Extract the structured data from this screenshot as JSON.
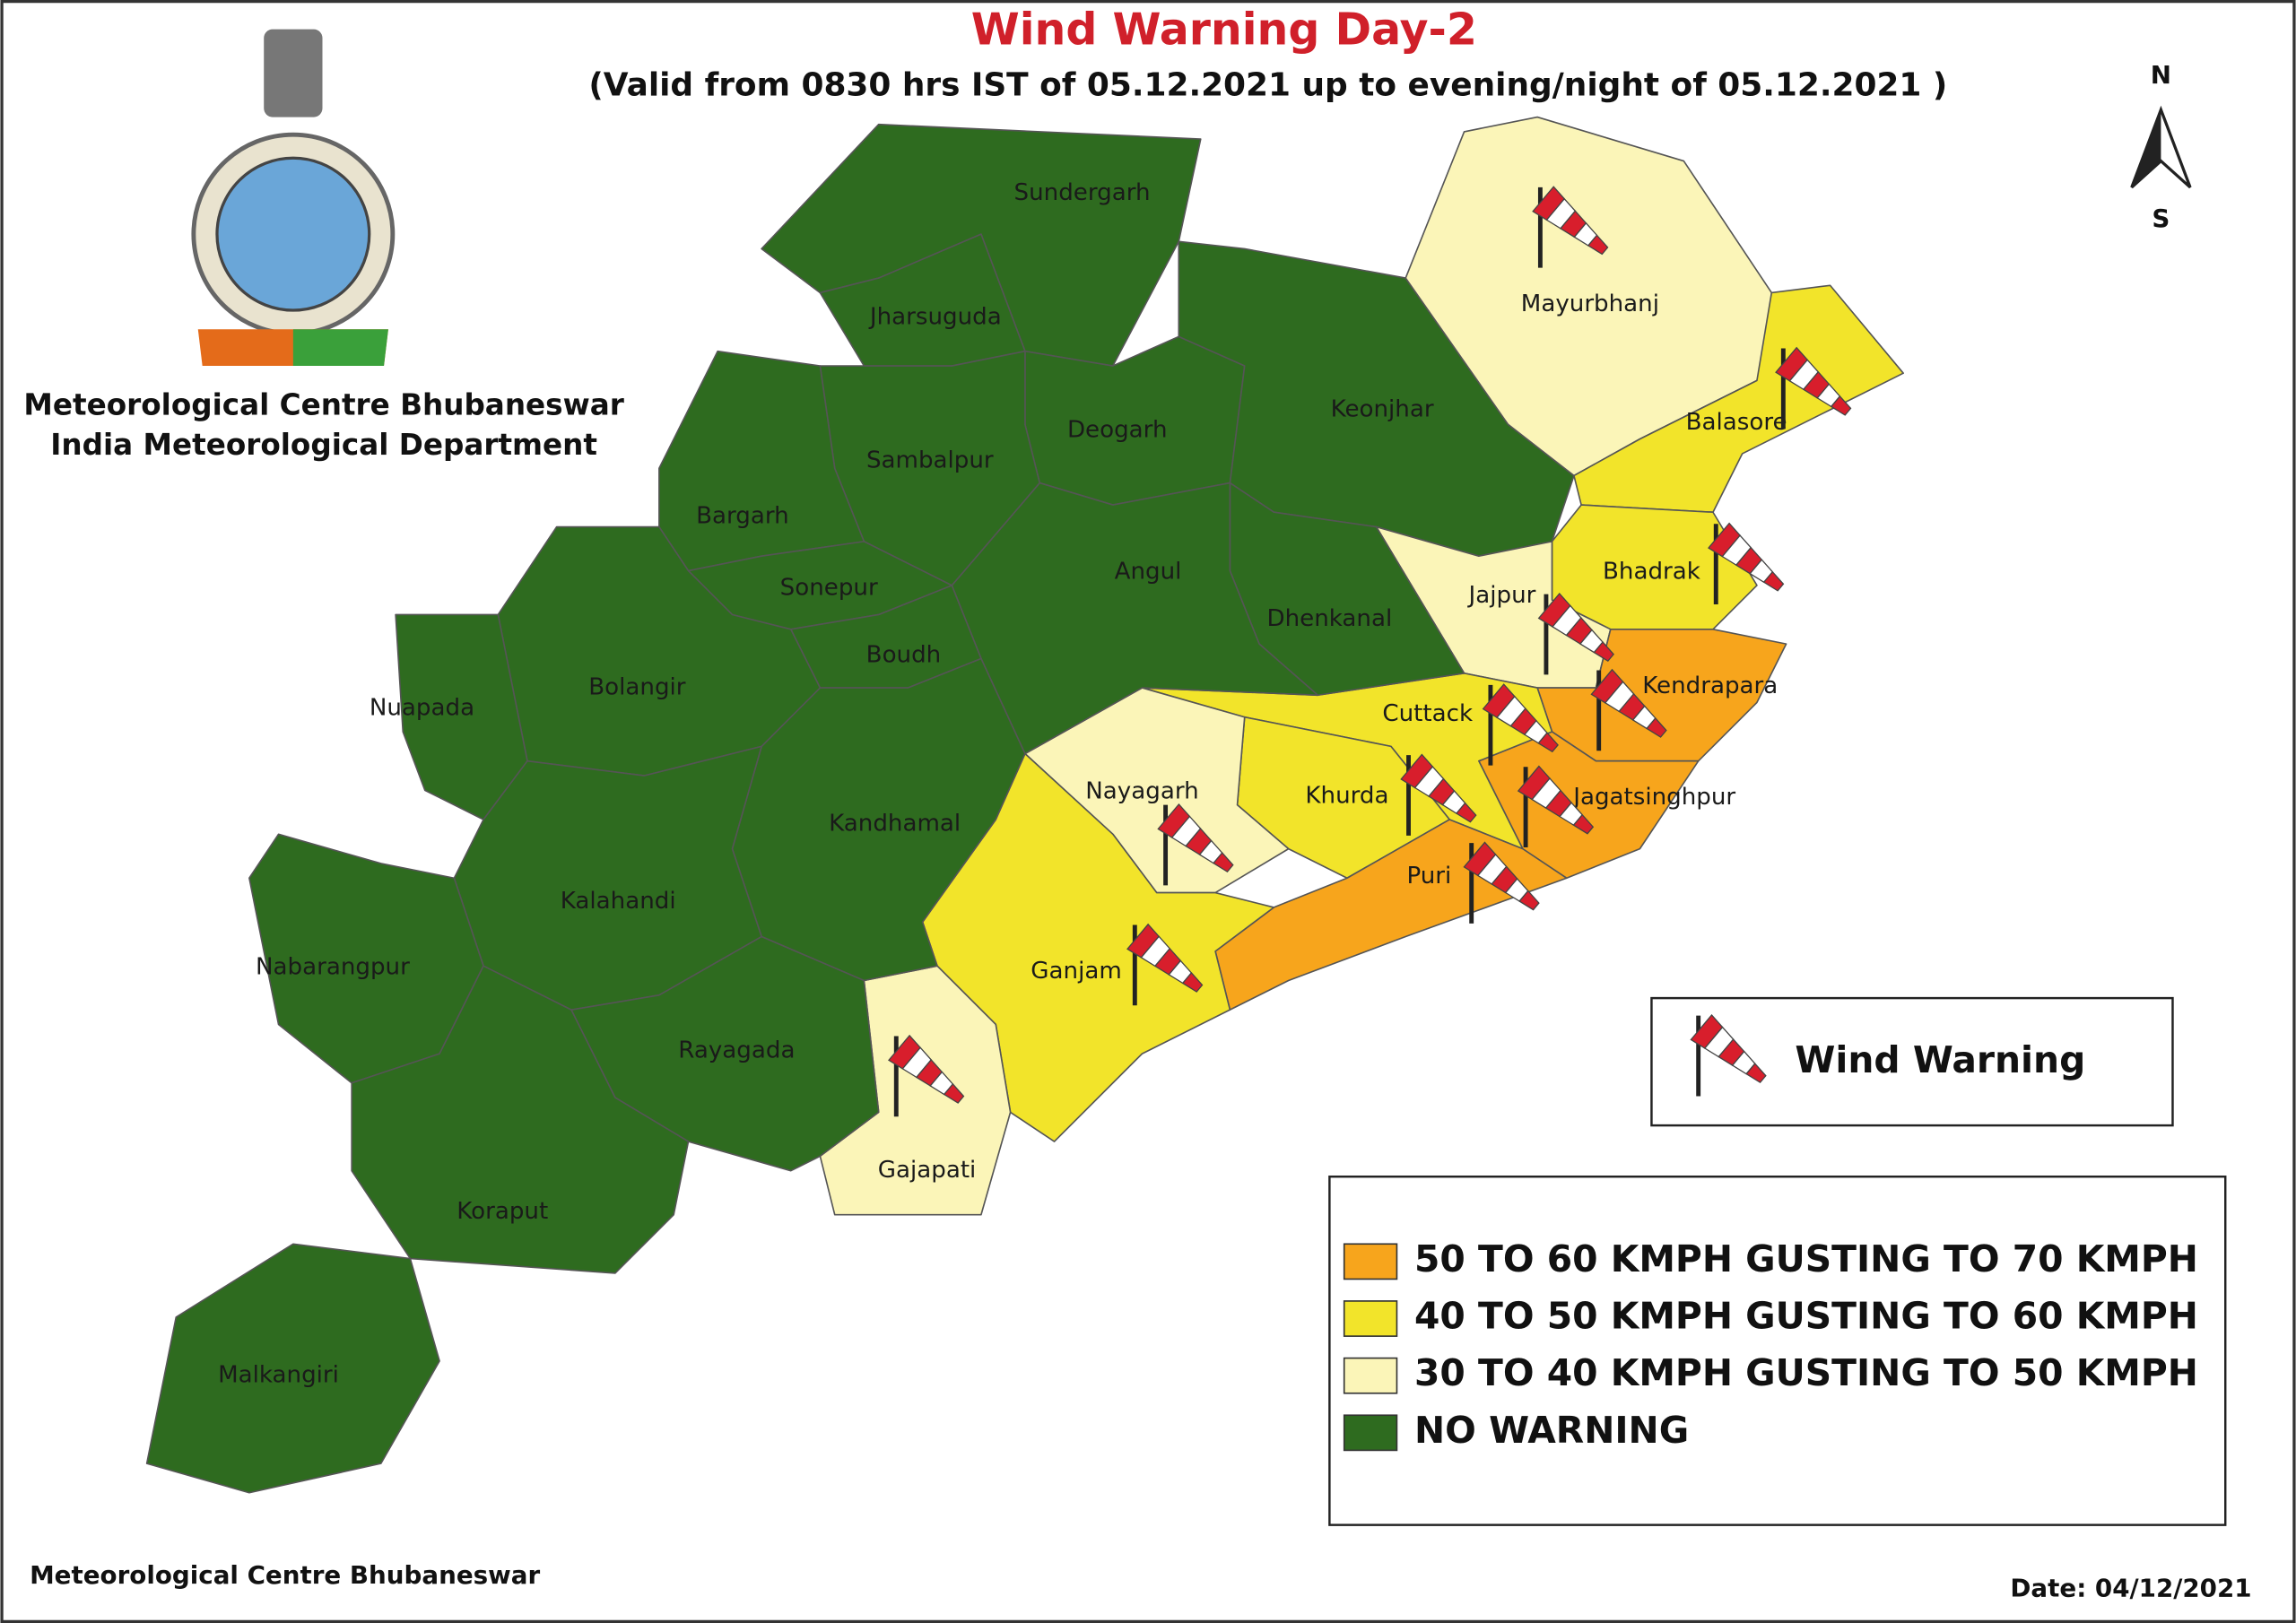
{
  "header": {
    "title": "Wind Warning Day-2",
    "subtitle": "(Valid from 0830 hrs IST of 05.12.2021 up to evening/night of 05.12.2021 )",
    "organization": [
      "Meteorological Centre Bhubaneswar",
      "India Meteorological Department"
    ]
  },
  "compass": {
    "north": "N",
    "south": "S"
  },
  "districts": [
    {
      "name": "Sundergarh",
      "color": "#2e6b1f",
      "windsock": false
    },
    {
      "name": "Jharsuguda",
      "color": "#2e6b1f",
      "windsock": false
    },
    {
      "name": "Deogarh",
      "color": "#2e6b1f",
      "windsock": false
    },
    {
      "name": "Keonjhar",
      "color": "#2e6b1f",
      "windsock": false
    },
    {
      "name": "Mayurbhanj",
      "color": "#fbf5b8",
      "windsock": true
    },
    {
      "name": "Balasore",
      "color": "#f2e42a",
      "windsock": true
    },
    {
      "name": "Bhadrak",
      "color": "#f2e42a",
      "windsock": true
    },
    {
      "name": "Jajpur",
      "color": "#fbf5b8",
      "windsock": true
    },
    {
      "name": "Kendrapara",
      "color": "#f7a51c",
      "windsock": true
    },
    {
      "name": "Jagatsinghpur",
      "color": "#f7a51c",
      "windsock": true
    },
    {
      "name": "Cuttack",
      "color": "#f2e42a",
      "windsock": true
    },
    {
      "name": "Khurda",
      "color": "#f2e42a",
      "windsock": true
    },
    {
      "name": "Puri",
      "color": "#f7a51c",
      "windsock": true
    },
    {
      "name": "Nayagarh",
      "color": "#fbf5b8",
      "windsock": true
    },
    {
      "name": "Ganjam",
      "color": "#f2e42a",
      "windsock": true
    },
    {
      "name": "Gajapati",
      "color": "#fbf5b8",
      "windsock": true
    },
    {
      "name": "Dhenkanal",
      "color": "#2e6b1f",
      "windsock": false
    },
    {
      "name": "Angul",
      "color": "#2e6b1f",
      "windsock": false
    },
    {
      "name": "Sambalpur",
      "color": "#2e6b1f",
      "windsock": false
    },
    {
      "name": "Bargarh",
      "color": "#2e6b1f",
      "windsock": false
    },
    {
      "name": "Sonepur",
      "color": "#2e6b1f",
      "windsock": false
    },
    {
      "name": "Boudh",
      "color": "#2e6b1f",
      "windsock": false
    },
    {
      "name": "Kandhamal",
      "color": "#2e6b1f",
      "windsock": false
    },
    {
      "name": "Bolangir",
      "color": "#2e6b1f",
      "windsock": false
    },
    {
      "name": "Nuapada",
      "color": "#2e6b1f",
      "windsock": false
    },
    {
      "name": "Kalahandi",
      "color": "#2e6b1f",
      "windsock": false
    },
    {
      "name": "Nabarangpur",
      "color": "#2e6b1f",
      "windsock": false
    },
    {
      "name": "Rayagada",
      "color": "#2e6b1f",
      "windsock": false
    },
    {
      "name": "Koraput",
      "color": "#2e6b1f",
      "windsock": false
    },
    {
      "name": "Malkangiri",
      "color": "#2e6b1f",
      "windsock": false
    }
  ],
  "wind_legend": {
    "label": "Wind Warning"
  },
  "legend": [
    {
      "label": "50 TO 60 KMPH GUSTING TO 70 KMPH",
      "color": "#f7a51c"
    },
    {
      "label": "40 TO 50 KMPH GUSTING TO 60 KMPH",
      "color": "#f2e42a"
    },
    {
      "label": "30 TO 40 KMPH GUSTING TO 50 KMPH",
      "color": "#fbf5b8"
    },
    {
      "label": "NO WARNING",
      "color": "#2e6b1f"
    }
  ],
  "footer": {
    "left": "Meteorological Centre Bhubaneswar",
    "date": "Date: 04/12/2021"
  }
}
